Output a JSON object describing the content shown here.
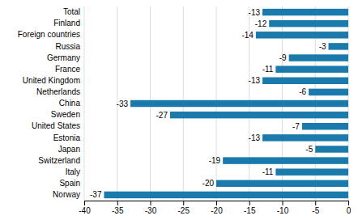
{
  "chart_data": {
    "type": "bar",
    "orientation": "horizontal",
    "categories": [
      "Norway",
      "Spain",
      "Italy",
      "Switzerland",
      "Japan",
      "Estonia",
      "United States",
      "Sweden",
      "China",
      "Netherlands",
      "United Kingdom",
      "France",
      "Germany",
      "Russia",
      "Foreign countries",
      "Finland",
      "Total"
    ],
    "values": [
      -37,
      -20,
      -11,
      -19,
      -5,
      -13,
      -7,
      -27,
      -33,
      -6,
      -13,
      -11,
      -9,
      -3,
      -14,
      -12,
      -13
    ],
    "color": "#1a7aab",
    "xlim": [
      -40,
      0
    ],
    "xticks": [
      -40,
      -35,
      -30,
      -25,
      -20,
      -15,
      -10,
      -5,
      0
    ],
    "grid": true,
    "data_labels": true
  }
}
